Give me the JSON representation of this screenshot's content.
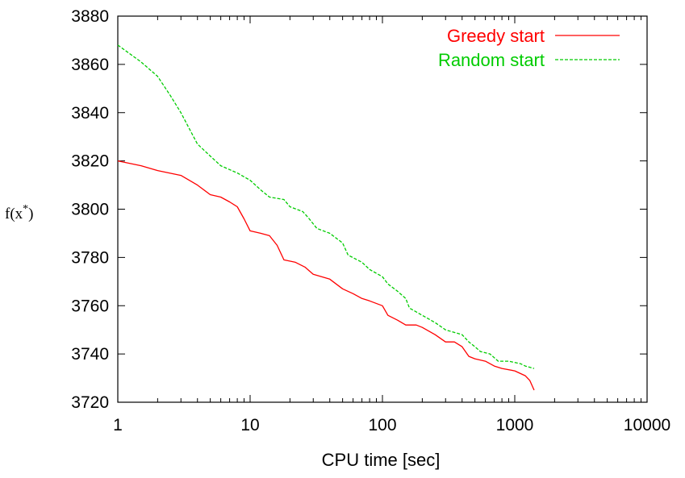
{
  "chart_data": {
    "type": "line",
    "xlabel": "CPU time [sec]",
    "ylabel_base": "f(x",
    "ylabel_sup": "*",
    "ylabel_close": ")",
    "xscale": "log",
    "xlim": [
      1,
      10000
    ],
    "ylim": [
      3720,
      3880
    ],
    "x_ticks": [
      1,
      10,
      100,
      1000,
      10000
    ],
    "x_tick_labels": [
      "1",
      "10",
      "100",
      "1000",
      "10000"
    ],
    "y_ticks": [
      3720,
      3740,
      3760,
      3780,
      3800,
      3820,
      3840,
      3860,
      3880
    ],
    "y_tick_labels": [
      "3720",
      "3740",
      "3760",
      "3780",
      "3800",
      "3820",
      "3840",
      "3860",
      "3880"
    ],
    "grid": false,
    "legend_position": "top-right",
    "series": [
      {
        "name": "Greedy start",
        "color": "#ff0000",
        "dash": "solid",
        "points": [
          [
            1,
            3820
          ],
          [
            1.5,
            3818
          ],
          [
            2,
            3816
          ],
          [
            3,
            3814
          ],
          [
            4,
            3810
          ],
          [
            5,
            3806
          ],
          [
            6,
            3805
          ],
          [
            7,
            3803
          ],
          [
            8,
            3801
          ],
          [
            9,
            3796
          ],
          [
            10,
            3791
          ],
          [
            12,
            3790
          ],
          [
            14,
            3789
          ],
          [
            16,
            3785
          ],
          [
            18,
            3779
          ],
          [
            22,
            3778
          ],
          [
            26,
            3776
          ],
          [
            30,
            3773
          ],
          [
            40,
            3771
          ],
          [
            50,
            3767
          ],
          [
            60,
            3765
          ],
          [
            70,
            3763
          ],
          [
            80,
            3762
          ],
          [
            100,
            3760
          ],
          [
            110,
            3756
          ],
          [
            130,
            3754
          ],
          [
            150,
            3752
          ],
          [
            180,
            3752
          ],
          [
            200,
            3751
          ],
          [
            250,
            3748
          ],
          [
            300,
            3745
          ],
          [
            350,
            3745
          ],
          [
            400,
            3743
          ],
          [
            450,
            3739
          ],
          [
            500,
            3738
          ],
          [
            600,
            3737
          ],
          [
            700,
            3735
          ],
          [
            800,
            3734
          ],
          [
            1000,
            3733
          ],
          [
            1200,
            3731
          ],
          [
            1300,
            3729
          ],
          [
            1400,
            3725
          ]
        ]
      },
      {
        "name": "Random start",
        "color": "#00cc00",
        "dash": "dashed",
        "points": [
          [
            1,
            3868
          ],
          [
            1.5,
            3861
          ],
          [
            2,
            3855
          ],
          [
            2.5,
            3847
          ],
          [
            3,
            3840
          ],
          [
            3.5,
            3833
          ],
          [
            4,
            3827
          ],
          [
            5,
            3822
          ],
          [
            6,
            3818
          ],
          [
            8,
            3815
          ],
          [
            10,
            3812
          ],
          [
            12,
            3808
          ],
          [
            14,
            3805
          ],
          [
            18,
            3804
          ],
          [
            20,
            3801
          ],
          [
            25,
            3799
          ],
          [
            28,
            3796
          ],
          [
            32,
            3792
          ],
          [
            40,
            3790
          ],
          [
            50,
            3786
          ],
          [
            55,
            3781
          ],
          [
            70,
            3778
          ],
          [
            80,
            3775
          ],
          [
            100,
            3772
          ],
          [
            110,
            3769
          ],
          [
            130,
            3766
          ],
          [
            150,
            3763
          ],
          [
            160,
            3759
          ],
          [
            200,
            3756
          ],
          [
            250,
            3753
          ],
          [
            300,
            3750
          ],
          [
            400,
            3748
          ],
          [
            450,
            3745
          ],
          [
            500,
            3743
          ],
          [
            550,
            3741
          ],
          [
            650,
            3740
          ],
          [
            750,
            3737
          ],
          [
            900,
            3737
          ],
          [
            1100,
            3736
          ],
          [
            1200,
            3735
          ],
          [
            1400,
            3734
          ]
        ]
      }
    ]
  }
}
